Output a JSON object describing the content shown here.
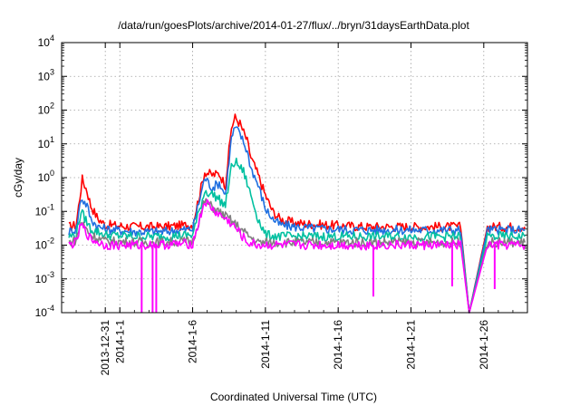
{
  "chart_data": {
    "type": "line",
    "title": "/data/run/goesPlots/archive/2014-01-27/flux/../bryn/31daysEarthData.plot",
    "xlabel": "Coordinated Universal Time (UTC)",
    "ylabel": "cGy/day",
    "yscale": "log",
    "ylim": [
      0.0001,
      10000
    ],
    "xlim": [
      "2013-12-28",
      "2014-01-29"
    ],
    "y_ticks": [
      {
        "value": 0.0001,
        "mantissa": "10",
        "exp": "-4"
      },
      {
        "value": 0.001,
        "mantissa": "10",
        "exp": "-3"
      },
      {
        "value": 0.01,
        "mantissa": "10",
        "exp": "-2"
      },
      {
        "value": 0.1,
        "mantissa": "10",
        "exp": "-1"
      },
      {
        "value": 1,
        "mantissa": "10",
        "exp": "0"
      },
      {
        "value": 10,
        "mantissa": "10",
        "exp": "1"
      },
      {
        "value": 100,
        "mantissa": "10",
        "exp": "2"
      },
      {
        "value": 1000,
        "mantissa": "10",
        "exp": "3"
      },
      {
        "value": 10000,
        "mantissa": "10",
        "exp": "4"
      }
    ],
    "x_ticks": [
      {
        "date": "2013-12-31",
        "label": "2013-12-31"
      },
      {
        "date": "2014-01-01",
        "label": "2014-1-1"
      },
      {
        "date": "2014-01-06",
        "label": "2014-1-6"
      },
      {
        "date": "2014-01-11",
        "label": "2014-1-11"
      },
      {
        "date": "2014-01-16",
        "label": "2014-1-16"
      },
      {
        "date": "2014-01-21",
        "label": "2014-1-21"
      },
      {
        "date": "2014-01-26",
        "label": "2014-1-26"
      }
    ],
    "grid": true,
    "data_gap": [
      "2014-01-24T10:00",
      "2014-01-26T06:00"
    ],
    "series": [
      {
        "color": "#ff0000",
        "points": [
          [
            "2013-12-28T12:00",
            0.035
          ],
          [
            "2013-12-29",
            0.04
          ],
          [
            "2013-12-29T10:00",
            0.9
          ],
          [
            "2013-12-29T18:00",
            0.4
          ],
          [
            "2013-12-30",
            0.15
          ],
          [
            "2013-12-30T12:00",
            0.06
          ],
          [
            "2013-12-31",
            0.04
          ],
          [
            "2014-01-02",
            0.035
          ],
          [
            "2014-01-04",
            0.035
          ],
          [
            "2014-01-06",
            0.04
          ],
          [
            "2014-01-06T20:00",
            1.5
          ],
          [
            "2014-01-07T08:00",
            1.2
          ],
          [
            "2014-01-07T20:00",
            1.3
          ],
          [
            "2014-01-08T06:00",
            0.6
          ],
          [
            "2014-01-08T16:00",
            30
          ],
          [
            "2014-01-08T22:00",
            60
          ],
          [
            "2014-01-09T06:00",
            40
          ],
          [
            "2014-01-09T18:00",
            12
          ],
          [
            "2014-01-10",
            4
          ],
          [
            "2014-01-10T12:00",
            1.2
          ],
          [
            "2014-01-11",
            0.3
          ],
          [
            "2014-01-11T12:00",
            0.1
          ],
          [
            "2014-01-12",
            0.06
          ],
          [
            "2014-01-13",
            0.045
          ],
          [
            "2014-01-15",
            0.04
          ],
          [
            "2014-01-18",
            0.035
          ],
          [
            "2014-01-21",
            0.035
          ],
          [
            "2014-01-23",
            0.035
          ],
          [
            "2014-01-24T10:00",
            0.035
          ],
          [
            "2014-01-25",
            0.0001
          ],
          [
            "2014-01-26T06:00",
            0.035
          ],
          [
            "2014-01-28",
            0.035
          ],
          [
            "2014-01-28T20:00",
            0.035
          ]
        ]
      },
      {
        "color": "#1f6fe0",
        "points": [
          [
            "2013-12-28T12:00",
            0.025
          ],
          [
            "2013-12-29",
            0.03
          ],
          [
            "2013-12-29T08:00",
            0.25
          ],
          [
            "2013-12-29T18:00",
            0.15
          ],
          [
            "2013-12-30",
            0.06
          ],
          [
            "2013-12-30T12:00",
            0.035
          ],
          [
            "2013-12-31",
            0.03
          ],
          [
            "2014-01-02",
            0.025
          ],
          [
            "2014-01-04",
            0.025
          ],
          [
            "2014-01-06",
            0.03
          ],
          [
            "2014-01-06T20:00",
            1.0
          ],
          [
            "2014-01-07T08:00",
            0.5
          ],
          [
            "2014-01-07T20:00",
            0.7
          ],
          [
            "2014-01-08T06:00",
            0.3
          ],
          [
            "2014-01-08T16:00",
            15
          ],
          [
            "2014-01-08T22:00",
            30
          ],
          [
            "2014-01-09T06:00",
            20
          ],
          [
            "2014-01-09T18:00",
            6
          ],
          [
            "2014-01-10",
            2
          ],
          [
            "2014-01-10T12:00",
            0.6
          ],
          [
            "2014-01-11",
            0.12
          ],
          [
            "2014-01-11T12:00",
            0.06
          ],
          [
            "2014-01-12",
            0.04
          ],
          [
            "2014-01-13",
            0.035
          ],
          [
            "2014-01-15",
            0.03
          ],
          [
            "2014-01-18",
            0.028
          ],
          [
            "2014-01-21",
            0.028
          ],
          [
            "2014-01-23",
            0.028
          ],
          [
            "2014-01-24T10:00",
            0.028
          ],
          [
            "2014-01-25",
            0.0001
          ],
          [
            "2014-01-26T06:00",
            0.028
          ],
          [
            "2014-01-28",
            0.028
          ],
          [
            "2014-01-28T20:00",
            0.028
          ]
        ]
      },
      {
        "color": "#00c0a0",
        "points": [
          [
            "2013-12-28T12:00",
            0.018
          ],
          [
            "2013-12-29",
            0.02
          ],
          [
            "2013-12-29T08:00",
            0.1
          ],
          [
            "2013-12-30",
            0.03
          ],
          [
            "2013-12-31",
            0.02
          ],
          [
            "2014-01-02",
            0.018
          ],
          [
            "2014-01-04",
            0.018
          ],
          [
            "2014-01-06",
            0.02
          ],
          [
            "2014-01-06T20:00",
            0.4
          ],
          [
            "2014-01-07T12:00",
            0.3
          ],
          [
            "2014-01-08T06:00",
            0.15
          ],
          [
            "2014-01-08T16:00",
            2
          ],
          [
            "2014-01-08T22:00",
            3
          ],
          [
            "2014-01-09T12:00",
            1.5
          ],
          [
            "2014-01-10",
            0.3
          ],
          [
            "2014-01-10T12:00",
            0.06
          ],
          [
            "2014-01-11",
            0.02
          ],
          [
            "2014-01-12",
            0.018
          ],
          [
            "2014-01-15",
            0.018
          ],
          [
            "2014-01-18",
            0.018
          ],
          [
            "2014-01-21",
            0.018
          ],
          [
            "2014-01-24T10:00",
            0.018
          ],
          [
            "2014-01-25",
            0.0001
          ],
          [
            "2014-01-26T06:00",
            0.018
          ],
          [
            "2014-01-28T20:00",
            0.018
          ]
        ]
      },
      {
        "color": "#808080",
        "points": [
          [
            "2013-12-28T12:00",
            0.012
          ],
          [
            "2013-12-29",
            0.014
          ],
          [
            "2013-12-29T08:00",
            0.05
          ],
          [
            "2013-12-30",
            0.02
          ],
          [
            "2013-12-31",
            0.013
          ],
          [
            "2014-01-03",
            0.012
          ],
          [
            "2014-01-06",
            0.013
          ],
          [
            "2014-01-06T20:00",
            0.2
          ],
          [
            "2014-01-07T12:00",
            0.12
          ],
          [
            "2014-01-08T12:00",
            0.06
          ],
          [
            "2014-01-09",
            0.04
          ],
          [
            "2014-01-09T18:00",
            0.02
          ],
          [
            "2014-01-10T12:00",
            0.012
          ],
          [
            "2014-01-13",
            0.012
          ],
          [
            "2014-01-18",
            0.012
          ],
          [
            "2014-01-24T10:00",
            0.012
          ],
          [
            "2014-01-25",
            0.0001
          ],
          [
            "2014-01-26T06:00",
            0.012
          ],
          [
            "2014-01-28T20:00",
            0.012
          ]
        ]
      },
      {
        "color": "#ff00ff",
        "points": [
          [
            "2013-12-28T12:00",
            0.01
          ],
          [
            "2013-12-29",
            0.012
          ],
          [
            "2013-12-29T08:00",
            0.04
          ],
          [
            "2013-12-30",
            0.015
          ],
          [
            "2013-12-31",
            0.01
          ],
          [
            "2014-01-03",
            0.01
          ],
          [
            "2014-01-06",
            0.011
          ],
          [
            "2014-01-06T20:00",
            0.2
          ],
          [
            "2014-01-07T12:00",
            0.1
          ],
          [
            "2014-01-08T12:00",
            0.05
          ],
          [
            "2014-01-09",
            0.03
          ],
          [
            "2014-01-09T18:00",
            0.012
          ],
          [
            "2014-01-10T12:00",
            0.01
          ],
          [
            "2014-01-13",
            0.01
          ],
          [
            "2014-01-18",
            0.01
          ],
          [
            "2014-01-24T10:00",
            0.01
          ],
          [
            "2014-01-25",
            0.0001
          ],
          [
            "2014-01-26T06:00",
            0.01
          ],
          [
            "2014-01-28T20:00",
            0.01
          ]
        ]
      }
    ],
    "spikes": [
      {
        "date": "2014-01-02T12:00",
        "value": 0.0001,
        "color": "#ff00ff"
      },
      {
        "date": "2014-01-03T06:00",
        "value": 0.0001,
        "color": "#ff00ff"
      },
      {
        "date": "2014-01-03T12:00",
        "value": 0.0001,
        "color": "#ff00ff"
      },
      {
        "date": "2014-01-18T10:00",
        "value": 0.0003,
        "color": "#ff00ff"
      },
      {
        "date": "2014-01-23T20:00",
        "value": 0.0006,
        "color": "#ff00ff"
      },
      {
        "date": "2014-01-26T18:00",
        "value": 0.0005,
        "color": "#ff00ff"
      }
    ]
  }
}
